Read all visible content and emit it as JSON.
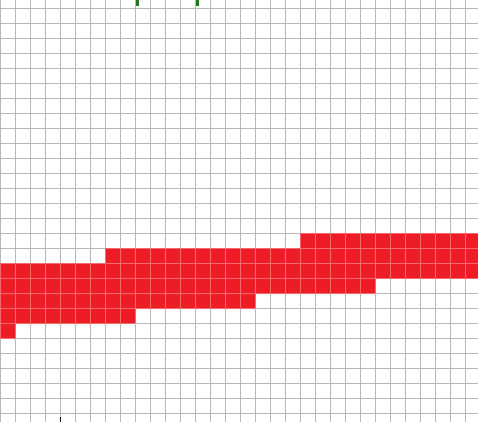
{
  "canvas": {
    "background_color": "#ffffff",
    "grid_line_color": "#b8b8b8",
    "fill_color": "#ee1c25",
    "marker_color": "#1f7a1f",
    "cursor_color": "#000000"
  },
  "grid": {
    "visible_columns": 32,
    "visible_rows": 28,
    "filled_runs": [
      {
        "row": 15,
        "col_start": 20,
        "col_end": 31
      },
      {
        "row": 16,
        "col_start": 7,
        "col_end": 31
      },
      {
        "row": 17,
        "col_start": 0,
        "col_end": 31
      },
      {
        "row": 18,
        "col_start": 0,
        "col_end": 24
      },
      {
        "row": 19,
        "col_start": 0,
        "col_end": 16
      },
      {
        "row": 20,
        "col_start": 0,
        "col_end": 8
      },
      {
        "row": 21,
        "col_start": 0,
        "col_end": 0
      }
    ]
  },
  "markers": [
    {
      "name": "top-marker-left",
      "col": 9
    },
    {
      "name": "top-marker-right",
      "col": 13
    }
  ]
}
